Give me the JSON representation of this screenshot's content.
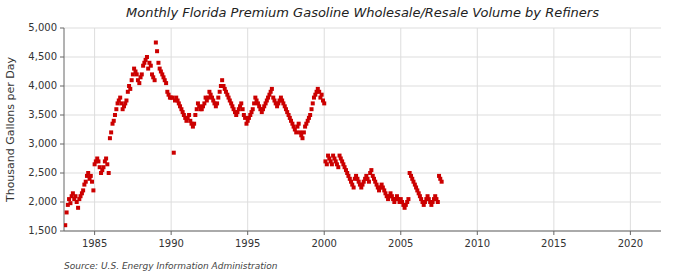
{
  "chart_data": {
    "type": "scatter",
    "title": "Monthly Florida Premium Gasoline Wholesale/Resale Volume by Refiners",
    "ylabel": "Thousand Gallons per Day",
    "annotations": [
      "Source: U.S. Energy Information Administration"
    ],
    "color": "#cc0000",
    "marker": "square",
    "grid": true,
    "xlim": [
      1983.0,
      2022.0
    ],
    "xticks": [
      1985,
      1990,
      1995,
      2000,
      2005,
      2010,
      2015,
      2020
    ],
    "ylim": [
      1500,
      5000
    ],
    "yticks": [
      {
        "value": 1500,
        "label": "1,500"
      },
      {
        "value": 2000,
        "label": "2,000"
      },
      {
        "value": 2500,
        "label": "2,500"
      },
      {
        "value": 3000,
        "label": "3,000"
      },
      {
        "value": 3500,
        "label": "3,500"
      },
      {
        "value": 4000,
        "label": "4,000"
      },
      {
        "value": 4500,
        "label": "4,500"
      },
      {
        "value": 5000,
        "label": "5,000"
      }
    ],
    "x": [
      1983.08,
      1983.17,
      1983.25,
      1983.33,
      1983.42,
      1983.5,
      1983.58,
      1983.67,
      1983.75,
      1983.83,
      1983.92,
      1984.0,
      1984.08,
      1984.17,
      1984.25,
      1984.33,
      1984.42,
      1984.5,
      1984.58,
      1984.67,
      1984.75,
      1984.83,
      1984.92,
      1985.0,
      1985.08,
      1985.17,
      1985.25,
      1985.33,
      1985.42,
      1985.5,
      1985.58,
      1985.67,
      1985.75,
      1985.83,
      1985.92,
      1986.0,
      1986.08,
      1986.17,
      1986.25,
      1986.33,
      1986.42,
      1986.5,
      1986.58,
      1986.67,
      1986.75,
      1986.83,
      1986.92,
      1987.0,
      1987.08,
      1987.17,
      1987.25,
      1987.33,
      1987.42,
      1987.5,
      1987.58,
      1987.67,
      1987.75,
      1987.83,
      1987.92,
      1988.0,
      1988.08,
      1988.17,
      1988.25,
      1988.33,
      1988.42,
      1988.5,
      1988.58,
      1988.67,
      1988.75,
      1988.83,
      1988.92,
      1989.0,
      1989.08,
      1989.17,
      1989.25,
      1989.33,
      1989.42,
      1989.5,
      1989.58,
      1989.67,
      1989.75,
      1989.83,
      1989.92,
      1990.0,
      1990.08,
      1990.17,
      1990.25,
      1990.33,
      1990.42,
      1990.5,
      1990.58,
      1990.67,
      1990.75,
      1990.83,
      1990.92,
      1991.0,
      1991.08,
      1991.17,
      1991.25,
      1991.33,
      1991.42,
      1991.5,
      1991.58,
      1991.67,
      1991.75,
      1991.83,
      1991.92,
      1992.0,
      1992.08,
      1992.17,
      1992.25,
      1992.33,
      1992.42,
      1992.5,
      1992.58,
      1992.67,
      1992.75,
      1992.83,
      1992.92,
      1993.0,
      1993.08,
      1993.17,
      1993.25,
      1993.33,
      1993.42,
      1993.5,
      1993.58,
      1993.67,
      1993.75,
      1993.83,
      1993.92,
      1994.0,
      1994.08,
      1994.17,
      1994.25,
      1994.33,
      1994.42,
      1994.5,
      1994.58,
      1994.67,
      1994.75,
      1994.83,
      1994.92,
      1995.0,
      1995.08,
      1995.17,
      1995.25,
      1995.33,
      1995.42,
      1995.5,
      1995.58,
      1995.67,
      1995.75,
      1995.83,
      1995.92,
      1996.0,
      1996.08,
      1996.17,
      1996.25,
      1996.33,
      1996.42,
      1996.5,
      1996.58,
      1996.67,
      1996.75,
      1996.83,
      1996.92,
      1997.0,
      1997.08,
      1997.17,
      1997.25,
      1997.33,
      1997.42,
      1997.5,
      1997.58,
      1997.67,
      1997.75,
      1997.83,
      1997.92,
      1998.0,
      1998.08,
      1998.17,
      1998.25,
      1998.33,
      1998.42,
      1998.5,
      1998.58,
      1998.67,
      1998.75,
      1998.83,
      1998.92,
      1999.0,
      1999.08,
      1999.17,
      1999.25,
      1999.33,
      1999.42,
      1999.5,
      1999.58,
      1999.67,
      1999.75,
      1999.83,
      1999.92,
      2000.0,
      2000.08,
      2000.17,
      2000.25,
      2000.33,
      2000.42,
      2000.5,
      2000.58,
      2000.67,
      2000.75,
      2000.83,
      2000.92,
      2001.0,
      2001.08,
      2001.17,
      2001.25,
      2001.33,
      2001.42,
      2001.5,
      2001.58,
      2001.67,
      2001.75,
      2001.83,
      2001.92,
      2002.0,
      2002.08,
      2002.17,
      2002.25,
      2002.33,
      2002.42,
      2002.5,
      2002.58,
      2002.67,
      2002.75,
      2002.83,
      2002.92,
      2003.0,
      2003.08,
      2003.17,
      2003.25,
      2003.33,
      2003.42,
      2003.5,
      2003.58,
      2003.67,
      2003.75,
      2003.83,
      2003.92,
      2004.0,
      2004.08,
      2004.17,
      2004.25,
      2004.33,
      2004.42,
      2004.5,
      2004.58,
      2004.67,
      2004.75,
      2004.83,
      2004.92,
      2005.0,
      2005.08,
      2005.17,
      2005.25,
      2005.33,
      2005.42,
      2005.5,
      2005.58,
      2005.67,
      2005.75,
      2005.83,
      2005.92,
      2006.0,
      2006.08,
      2006.17,
      2006.25,
      2006.33,
      2006.42,
      2006.5,
      2006.58,
      2006.67,
      2006.75,
      2006.83,
      2006.92,
      2007.0,
      2007.08,
      2007.17,
      2007.25,
      2007.33,
      2007.42,
      2007.5,
      2007.58,
      2007.67
    ],
    "values": [
      1600,
      1820,
      1950,
      2050,
      1980,
      2100,
      2150,
      2050,
      2100,
      2000,
      1900,
      2050,
      2100,
      2150,
      2200,
      2300,
      2350,
      2450,
      2500,
      2400,
      2450,
      2350,
      2200,
      2650,
      2700,
      2750,
      2700,
      2600,
      2500,
      2550,
      2600,
      2700,
      2750,
      2650,
      2500,
      3100,
      3200,
      3350,
      3400,
      3500,
      3600,
      3700,
      3750,
      3800,
      3700,
      3600,
      3650,
      3700,
      3750,
      3900,
      4000,
      3950,
      4100,
      4200,
      4300,
      4250,
      4200,
      4100,
      4050,
      4150,
      4200,
      4350,
      4400,
      4450,
      4500,
      4300,
      4400,
      4350,
      4200,
      4150,
      4100,
      4750,
      4600,
      4400,
      4300,
      4250,
      4200,
      4150,
      4100,
      4050,
      3900,
      3850,
      3800,
      3800,
      3800,
      2850,
      3750,
      3800,
      3750,
      3700,
      3650,
      3600,
      3550,
      3500,
      3450,
      3400,
      3450,
      3500,
      3400,
      3350,
      3300,
      3350,
      3500,
      3600,
      3700,
      3650,
      3600,
      3600,
      3650,
      3700,
      3800,
      3750,
      3800,
      3900,
      3850,
      3800,
      3750,
      3700,
      3650,
      3700,
      3800,
      3900,
      4000,
      4100,
      4000,
      3950,
      3900,
      3850,
      3800,
      3750,
      3700,
      3650,
      3600,
      3550,
      3500,
      3550,
      3600,
      3650,
      3700,
      3600,
      3500,
      3450,
      3350,
      3400,
      3450,
      3500,
      3550,
      3600,
      3700,
      3800,
      3750,
      3700,
      3650,
      3600,
      3550,
      3600,
      3650,
      3700,
      3750,
      3800,
      3850,
      3900,
      3950,
      3800,
      3750,
      3700,
      3650,
      3700,
      3750,
      3800,
      3750,
      3700,
      3650,
      3600,
      3550,
      3500,
      3450,
      3400,
      3350,
      3300,
      3250,
      3200,
      3300,
      3350,
      3200,
      3150,
      3100,
      3200,
      3300,
      3350,
      3400,
      3450,
      3500,
      3600,
      3700,
      3800,
      3850,
      3900,
      3950,
      3900,
      3800,
      3850,
      3750,
      3700,
      2700,
      2650,
      2800,
      2750,
      2700,
      2650,
      2800,
      2750,
      2700,
      2650,
      2600,
      2800,
      2750,
      2700,
      2650,
      2600,
      2550,
      2500,
      2450,
      2400,
      2350,
      2300,
      2250,
      2400,
      2450,
      2400,
      2350,
      2300,
      2250,
      2300,
      2350,
      2400,
      2450,
      2400,
      2350,
      2500,
      2550,
      2450,
      2400,
      2350,
      2300,
      2250,
      2200,
      2250,
      2300,
      2250,
      2200,
      2150,
      2100,
      2050,
      2100,
      2150,
      2100,
      2050,
      2000,
      2050,
      2100,
      2050,
      2000,
      2050,
      2000,
      1950,
      1900,
      1950,
      2000,
      2050,
      2500,
      2450,
      2400,
      2350,
      2300,
      2250,
      2200,
      2150,
      2100,
      2050,
      2000,
      1950,
      2000,
      2050,
      2100,
      2050,
      2000,
      1950,
      2000,
      2050,
      2100,
      2050,
      2000,
      2450,
      2400,
      2350
    ]
  }
}
